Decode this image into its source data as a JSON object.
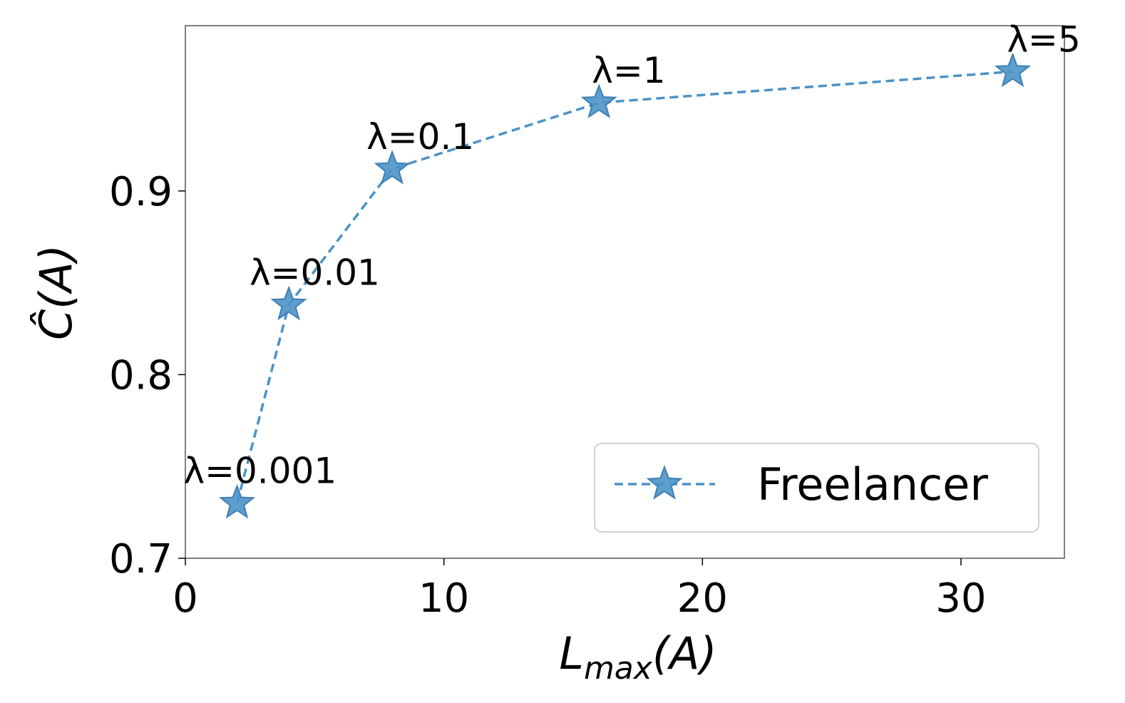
{
  "chart_data": {
    "type": "line",
    "x_label": [
      "L",
      "max",
      "(A)"
    ],
    "y_label": "Ĉ(A)",
    "x": [
      2,
      4,
      8,
      16,
      32
    ],
    "series": [
      {
        "name": "Freelancer",
        "color": "#4c93c6",
        "values": [
          0.73,
          0.838,
          0.912,
          0.948,
          0.965
        ]
      }
    ],
    "annotations": [
      "λ=0.001",
      "λ=0.01",
      "λ=0.1",
      "λ=1",
      "λ=5"
    ],
    "xlim": [
      0,
      34
    ],
    "ylim": [
      0.7,
      0.99
    ],
    "xticks": [
      0,
      10,
      20,
      30
    ],
    "yticks": [
      0.7,
      0.8,
      0.9
    ],
    "legend": "lower right",
    "line_style": "dashed",
    "marker": "star"
  }
}
